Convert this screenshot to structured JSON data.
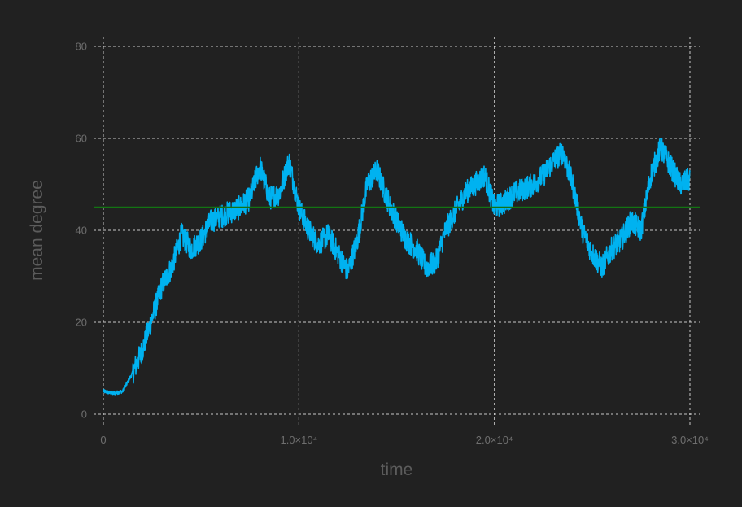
{
  "chart_data": {
    "type": "line",
    "title": "",
    "xlabel": "time",
    "ylabel": "mean degree",
    "xlim": [
      0,
      30000
    ],
    "ylim": [
      0,
      80
    ],
    "grid": true,
    "x_ticks": [
      {
        "value": 0,
        "label": "0"
      },
      {
        "value": 10000,
        "label": "1.0×10⁴"
      },
      {
        "value": 20000,
        "label": "2.0×10⁴"
      },
      {
        "value": 30000,
        "label": "3.0×10⁴"
      }
    ],
    "y_ticks": [
      {
        "value": 0,
        "label": "0"
      },
      {
        "value": 20,
        "label": "20"
      },
      {
        "value": 40,
        "label": "40"
      },
      {
        "value": 60,
        "label": "60"
      },
      {
        "value": 80,
        "label": "80"
      }
    ],
    "colors": {
      "background": "#212121",
      "series": "#00b2f0",
      "reference": "#137413",
      "grid": "#e6e6e6"
    },
    "series": [
      {
        "style": "line",
        "x": [
          0,
          500,
          1000,
          1500,
          2000,
          2500,
          3000,
          3500,
          4000,
          4500,
          5000,
          5500,
          6000,
          6500,
          7000,
          7500,
          8000,
          8500,
          9000,
          9500,
          10000,
          10500,
          11000,
          11500,
          12000,
          12500,
          13000,
          13500,
          14000,
          14500,
          15000,
          15500,
          16000,
          16500,
          17000,
          17500,
          18000,
          18500,
          19000,
          19500,
          20000,
          20500,
          21000,
          21500,
          22000,
          22500,
          23000,
          23500,
          24000,
          24500,
          25000,
          25500,
          26000,
          26500,
          27000,
          27500,
          28000,
          28500,
          29000,
          29500,
          30000
        ],
        "values": [
          5,
          4.5,
          5,
          9,
          14,
          21,
          28,
          32,
          39,
          36,
          38,
          42,
          43,
          44,
          45,
          47,
          54,
          47,
          48,
          55,
          45,
          40,
          37,
          39,
          35,
          31,
          38,
          50,
          53,
          47,
          42,
          38,
          36,
          32,
          33,
          40,
          44,
          48,
          50,
          52,
          45,
          46,
          48,
          49,
          50,
          52,
          55,
          57,
          50,
          40,
          35,
          32,
          36,
          38,
          42,
          40,
          52,
          58,
          54,
          50,
          51
        ]
      },
      {
        "style": "hline",
        "values": [
          45
        ]
      }
    ]
  }
}
